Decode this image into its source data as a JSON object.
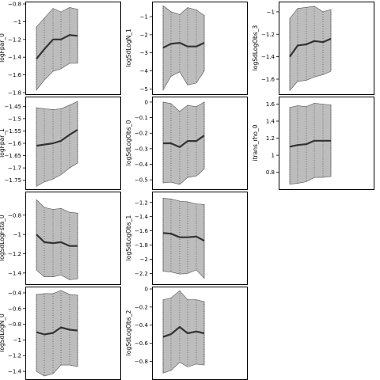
{
  "chart_data": [
    {
      "type": "area",
      "ylabel": "logFpar_0",
      "yticks": [
        -0.8,
        -1.0,
        -1.2,
        -1.4,
        -1.6,
        -1.8
      ],
      "ylim": [
        -1.8,
        -0.8
      ],
      "x": [
        1,
        2,
        3,
        4,
        5,
        6
      ],
      "center": [
        -1.42,
        -1.31,
        -1.2,
        -1.2,
        -1.15,
        -1.16
      ],
      "upper": [
        -1.06,
        -0.96,
        -0.85,
        -0.89,
        -0.84,
        -0.86
      ],
      "lower": [
        -1.77,
        -1.66,
        -1.56,
        -1.53,
        -1.47,
        -1.47
      ]
    },
    {
      "type": "area",
      "ylabel": "logSdLogN_1",
      "yticks": [
        -1,
        -2,
        -3,
        -4,
        -5
      ],
      "ylim": [
        -5.2,
        -0.3
      ],
      "x": [
        1,
        2,
        3,
        4,
        5,
        6
      ],
      "center": [
        -2.72,
        -2.5,
        -2.45,
        -2.65,
        -2.65,
        -2.45
      ],
      "upper": [
        -0.4,
        -0.73,
        -0.88,
        -0.5,
        -0.63,
        -0.93
      ],
      "lower": [
        -5.05,
        -4.3,
        -4.05,
        -4.78,
        -4.67,
        -4.0
      ]
    },
    {
      "type": "area",
      "ylabel": "logSdLogObs_3",
      "yticks": [
        -1.0,
        -1.2,
        -1.4,
        -1.6
      ],
      "ylim": [
        -1.72,
        -0.93
      ],
      "x": [
        1,
        2,
        3,
        4,
        5,
        6
      ],
      "center": [
        -1.4,
        -1.3,
        -1.29,
        -1.26,
        -1.27,
        -1.24
      ],
      "upper": [
        -1.06,
        -0.97,
        -0.96,
        -0.95,
        -1.0,
        -0.98
      ],
      "lower": [
        -1.7,
        -1.62,
        -1.61,
        -1.58,
        -1.56,
        -1.53
      ]
    },
    {
      "type": "area",
      "ylabel": "logFpar_1",
      "yticks": [
        -1.45,
        -1.5,
        -1.55,
        -1.6,
        -1.65,
        -1.7,
        -1.75
      ],
      "ylim": [
        -1.78,
        -1.42
      ],
      "x": [
        1,
        2,
        3,
        4,
        5,
        6
      ],
      "center": [
        -1.61,
        -1.605,
        -1.6,
        -1.59,
        -1.565,
        -1.545
      ],
      "upper": [
        -1.455,
        -1.46,
        -1.463,
        -1.46,
        -1.445,
        -1.43
      ],
      "lower": [
        -1.775,
        -1.757,
        -1.745,
        -1.728,
        -1.7,
        -1.68
      ]
    },
    {
      "type": "area",
      "ylabel": "logSdLogObs_0",
      "yticks": [
        0.0,
        -0.1,
        -0.2,
        -0.3,
        -0.4,
        -0.5
      ],
      "ylim": [
        -0.55,
        0.02
      ],
      "x": [
        1,
        2,
        3,
        4,
        5,
        6
      ],
      "center": [
        -0.265,
        -0.265,
        -0.29,
        -0.25,
        -0.25,
        -0.215
      ],
      "upper": [
        0.0,
        -0.01,
        -0.06,
        -0.02,
        -0.03,
        0.0
      ],
      "lower": [
        -0.52,
        -0.515,
        -0.53,
        -0.485,
        -0.475,
        -0.43
      ]
    },
    {
      "type": "area",
      "ylabel": "itrans_rho_0",
      "yticks": [
        1.6,
        1.4,
        1.2,
        1.0,
        0.8
      ],
      "ylim": [
        0.62,
        1.66
      ],
      "x": [
        1,
        2,
        3,
        4,
        5,
        6
      ],
      "center": [
        1.1,
        1.12,
        1.13,
        1.17,
        1.17,
        1.17
      ],
      "upper": [
        1.56,
        1.58,
        1.57,
        1.61,
        1.6,
        1.59
      ],
      "lower": [
        0.66,
        0.67,
        0.69,
        0.74,
        0.74,
        0.75
      ]
    },
    {
      "type": "area",
      "ylabel": "logSdLogFsta_0",
      "yticks": [
        -0.8,
        -1.0,
        -1.2,
        -1.4
      ],
      "ylim": [
        -1.5,
        -0.58
      ],
      "x": [
        1,
        2,
        3,
        4,
        5,
        6
      ],
      "center": [
        -1.0,
        -1.08,
        -1.09,
        -1.08,
        -1.12,
        -1.12
      ],
      "upper": [
        -0.64,
        -0.72,
        -0.74,
        -0.73,
        -0.77,
        -0.78
      ],
      "lower": [
        -1.37,
        -1.44,
        -1.44,
        -1.42,
        -1.47,
        -1.46
      ]
    },
    {
      "type": "area",
      "ylabel": "logSdLogObs_1",
      "yticks": [
        -1.2,
        -1.4,
        -1.6,
        -1.8,
        -2.0,
        -2.2
      ],
      "ylim": [
        -2.33,
        -1.08
      ],
      "x": [
        1,
        2,
        3,
        4,
        5,
        6
      ],
      "center": [
        -1.63,
        -1.64,
        -1.69,
        -1.69,
        -1.68,
        -1.74
      ],
      "upper": [
        -1.14,
        -1.15,
        -1.18,
        -1.19,
        -1.22,
        -1.23
      ],
      "lower": [
        -2.17,
        -2.18,
        -2.21,
        -2.2,
        -2.15,
        -2.27
      ]
    },
    {
      "type": "area",
      "ylabel": "logSdLogN_0",
      "yticks": [
        -0.4,
        -0.6,
        -0.8,
        -1.0,
        -1.2,
        -1.4
      ],
      "ylim": [
        -1.48,
        -0.35
      ],
      "x": [
        1,
        2,
        3,
        4,
        5,
        6
      ],
      "center": [
        -0.9,
        -0.93,
        -0.91,
        -0.84,
        -0.87,
        -0.88
      ],
      "upper": [
        -0.42,
        -0.41,
        -0.41,
        -0.37,
        -0.42,
        -0.43
      ],
      "lower": [
        -1.4,
        -1.46,
        -1.43,
        -1.32,
        -1.32,
        -1.34
      ]
    },
    {
      "type": "area",
      "ylabel": "logSdLogObs_2",
      "yticks": [
        0.0,
        -0.2,
        -0.4,
        -0.6,
        -0.8
      ],
      "ylim": [
        -0.98,
        0.0
      ],
      "x": [
        1,
        2,
        3,
        4,
        5,
        6
      ],
      "center": [
        -0.53,
        -0.5,
        -0.42,
        -0.49,
        -0.47,
        -0.49
      ],
      "upper": [
        -0.12,
        -0.1,
        -0.02,
        -0.12,
        -0.12,
        -0.14
      ],
      "lower": [
        -0.93,
        -0.9,
        -0.81,
        -0.86,
        -0.83,
        -0.84
      ]
    }
  ]
}
